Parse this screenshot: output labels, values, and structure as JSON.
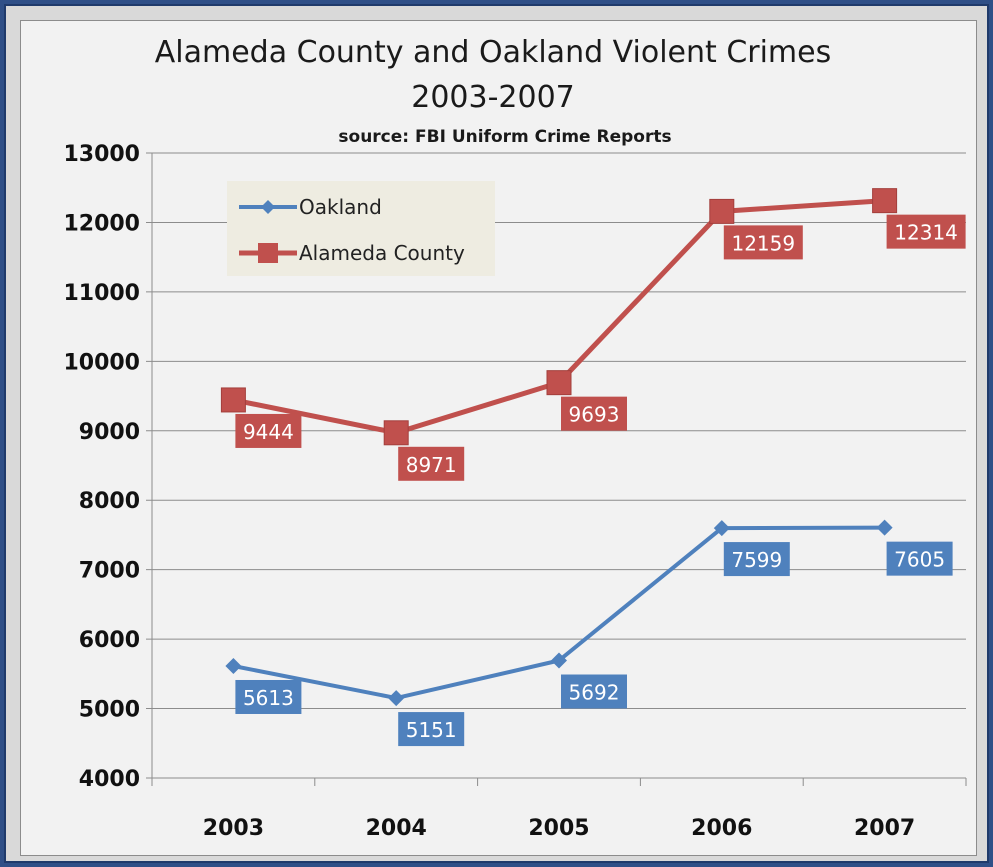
{
  "chart_data": {
    "type": "line",
    "title_line1": "Alameda County and Oakland Violent Crimes",
    "title_line2": "2003-2007",
    "subtitle": "source: FBI Uniform Crime Reports",
    "categories": [
      "2003",
      "2004",
      "2005",
      "2006",
      "2007"
    ],
    "ylim": [
      4000,
      13000
    ],
    "yticks": [
      4000,
      5000,
      6000,
      7000,
      8000,
      9000,
      10000,
      11000,
      12000,
      13000
    ],
    "grid": true,
    "legend_position": "top-left",
    "series": [
      {
        "name": "Oakland",
        "values": [
          5613,
          5151,
          5692,
          7599,
          7605
        ],
        "color": "#4f81bd",
        "marker": "diamond"
      },
      {
        "name": "Alameda County",
        "values": [
          9444,
          8971,
          9693,
          12159,
          12314
        ],
        "color": "#c0504d",
        "marker": "square"
      }
    ]
  }
}
